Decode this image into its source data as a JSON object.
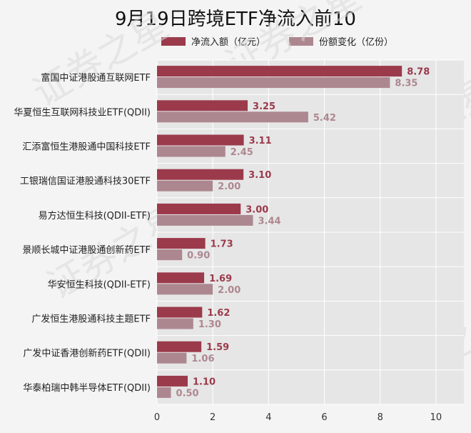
{
  "chart_data": {
    "type": "bar",
    "orientation": "horizontal",
    "title": "9月19日跨境ETF净流入前10",
    "categories": [
      "富国中证港股通互联网ETF",
      "华夏恒生互联网科技业ETF(QDII)",
      "汇添富恒生港股通中国科技ETF",
      "工银瑞信国证港股通科技30ETF",
      "易方达恒生科技(QDII-ETF)",
      "景顺长城中证港股通创新药ETF",
      "华安恒生科技(QDII-ETF)",
      "广发恒生港股通科技主题ETF",
      "广发中证香港创新药ETF(QDII)",
      "华泰柏瑞中韩半导体ETF(QDII)"
    ],
    "series": [
      {
        "name": "净流入额（亿元）",
        "color": "#9b3a4b",
        "values": [
          8.78,
          3.25,
          3.11,
          3.1,
          3.0,
          1.73,
          1.69,
          1.62,
          1.59,
          1.1
        ],
        "labels": [
          "8.78",
          "3.25",
          "3.11",
          "3.10",
          "3.00",
          "1.73",
          "1.69",
          "1.62",
          "1.59",
          "1.10"
        ]
      },
      {
        "name": "份额变化（亿份）",
        "color": "#ad8790",
        "values": [
          8.35,
          5.42,
          2.45,
          2.0,
          3.44,
          0.9,
          2.0,
          1.3,
          1.06,
          0.5
        ],
        "labels": [
          "8.35",
          "5.42",
          "2.45",
          "2.00",
          "3.44",
          "0.90",
          "2.00",
          "1.30",
          "1.06",
          "0.50"
        ]
      }
    ],
    "xlim": [
      0,
      11
    ],
    "xticks": [
      0,
      2,
      4,
      6,
      8,
      10
    ],
    "xtick_labels": [
      "0",
      "2",
      "4",
      "6",
      "8",
      "10"
    ],
    "grid": true,
    "legend_position": "top-center",
    "watermark_text": "证券之星"
  }
}
